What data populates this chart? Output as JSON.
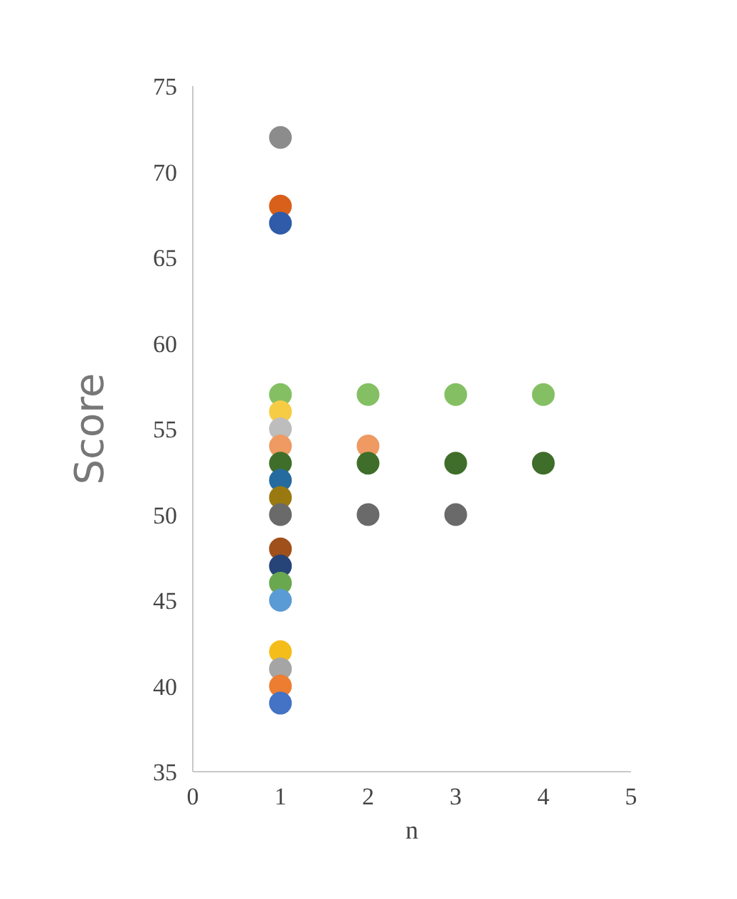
{
  "chart_data": {
    "type": "scatter",
    "xlabel": "n",
    "ylabel": "Score",
    "x": [
      1,
      1,
      1,
      1,
      1,
      1,
      1,
      1,
      1,
      1,
      1,
      1,
      1,
      1,
      1,
      1,
      1,
      1,
      1,
      2,
      2,
      2,
      2,
      3,
      3,
      3,
      4,
      4
    ],
    "values": [
      72,
      68,
      67,
      57,
      56,
      55,
      54,
      53,
      52,
      51,
      50,
      48,
      47,
      46,
      45,
      42,
      41,
      40,
      39,
      57,
      54,
      53,
      50,
      57,
      53,
      50,
      57,
      53
    ],
    "colors": [
      "#8c8c8c",
      "#d9601a",
      "#2f5ba8",
      "#84c063",
      "#f7cc45",
      "#bdbdbd",
      "#ee9a62",
      "#3f6e2a",
      "#256ba0",
      "#9a7a10",
      "#6a6a6a",
      "#a0501a",
      "#264478",
      "#6aa84f",
      "#5b9bd5",
      "#f5bd1a",
      "#a5a5a5",
      "#ed7d31",
      "#4472c4",
      "#84c063",
      "#ee9a62",
      "#3f6e2a",
      "#6a6a6a",
      "#84c063",
      "#3f6e2a",
      "#6a6a6a",
      "#84c063",
      "#3f6e2a"
    ],
    "xlim": [
      0,
      5
    ],
    "xticks": [
      0,
      1,
      2,
      3,
      4,
      5
    ],
    "ylim": [
      35,
      75
    ],
    "yticks": [
      35,
      40,
      45,
      50,
      55,
      60,
      65,
      70,
      75
    ],
    "grid": false,
    "marker": "circle"
  }
}
